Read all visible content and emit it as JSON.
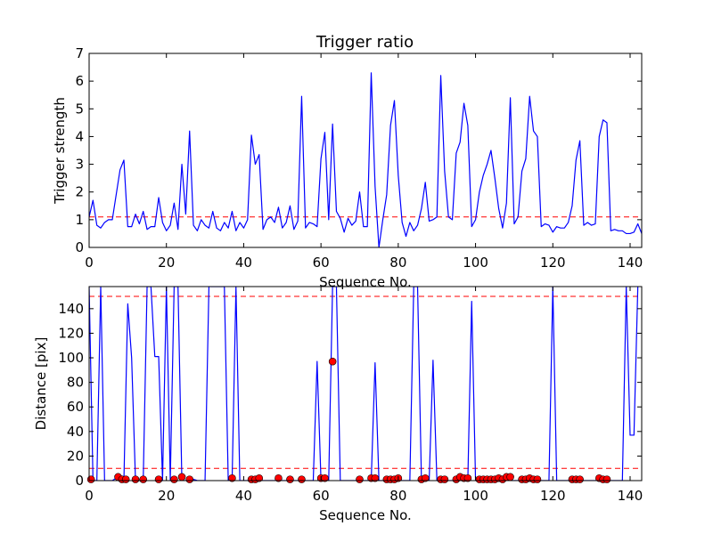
{
  "colors": {
    "series": "#0000ff",
    "threshold": "#ff0000",
    "marker_fill": "#ff0000",
    "marker_edge": "#000000"
  },
  "chart_data": [
    {
      "type": "line",
      "title": "Trigger ratio",
      "xlabel": "Sequence No.",
      "ylabel": "Trigger strength",
      "xlim": [
        0,
        143
      ],
      "ylim": [
        0,
        7
      ],
      "xticks": [
        0,
        20,
        40,
        60,
        80,
        100,
        120,
        140
      ],
      "yticks": [
        0,
        1,
        2,
        3,
        4,
        5,
        6,
        7
      ],
      "threshold": 1.1,
      "series": [
        {
          "values": [
            1.1,
            1.7,
            0.8,
            0.7,
            0.9,
            1.0,
            1.0,
            1.9,
            2.8,
            3.15,
            0.75,
            0.75,
            1.2,
            0.85,
            1.3,
            0.65,
            0.75,
            0.75,
            1.8,
            0.9,
            0.6,
            0.8,
            1.6,
            0.65,
            3.0,
            1.2,
            4.2,
            0.8,
            0.6,
            1.0,
            0.8,
            0.7,
            1.3,
            0.7,
            0.6,
            0.9,
            0.7,
            1.3,
            0.6,
            0.9,
            0.7,
            1.0,
            4.05,
            3.0,
            3.35,
            0.65,
            1.0,
            1.1,
            0.9,
            1.45,
            0.7,
            0.9,
            1.5,
            0.65,
            0.95,
            5.45,
            0.7,
            0.9,
            0.85,
            0.75,
            3.2,
            4.15,
            1.0,
            4.45,
            1.3,
            1.05,
            0.55,
            1.05,
            0.8,
            0.95,
            2.0,
            0.75,
            0.75,
            6.3,
            2.2,
            0.0,
            1.0,
            1.9,
            4.4,
            5.3,
            2.6,
            0.9,
            0.4,
            0.9,
            0.6,
            0.8,
            1.4,
            2.35,
            0.95,
            1.0,
            1.1,
            6.2,
            2.75,
            1.1,
            1.0,
            3.4,
            3.8,
            5.2,
            4.4,
            0.75,
            1.0,
            2.0,
            2.6,
            3.0,
            3.5,
            2.5,
            1.4,
            0.7,
            1.6,
            5.4,
            0.85,
            1.1,
            2.75,
            3.2,
            5.45,
            4.2,
            4.0,
            0.75,
            0.85,
            0.8,
            0.55,
            0.75,
            0.7,
            0.7,
            0.9,
            1.5,
            3.15,
            3.85,
            0.8,
            0.9,
            0.8,
            0.85,
            4.0,
            4.6,
            4.5,
            0.6,
            0.65,
            0.6,
            0.6,
            0.5,
            0.5,
            0.55,
            0.85,
            0.5
          ]
        }
      ]
    },
    {
      "type": "line",
      "title": "",
      "xlabel": "Sequence No.",
      "ylabel": "Distance [pix]",
      "xlim": [
        0,
        143
      ],
      "ylim": [
        0,
        158
      ],
      "xticks": [
        0,
        20,
        40,
        60,
        80,
        100,
        120,
        140
      ],
      "yticks": [
        0,
        20,
        40,
        60,
        80,
        100,
        120,
        140
      ],
      "thresholds": [
        150,
        10
      ],
      "series": [
        {
          "values": [
            158,
            0,
            0,
            158,
            0,
            0,
            0,
            2,
            1,
            0,
            144,
            100,
            0,
            0,
            0,
            158,
            158,
            101,
            101,
            0,
            158,
            0,
            158,
            158,
            0,
            0,
            0,
            1,
            0,
            0,
            0,
            158,
            158,
            158,
            158,
            158,
            0,
            0,
            158,
            0,
            0,
            0,
            0,
            0,
            0,
            0,
            0,
            0,
            0,
            0,
            0,
            0,
            0,
            0,
            0,
            0,
            0,
            0,
            0,
            97,
            0,
            0,
            0,
            158,
            158,
            0,
            0,
            0,
            0,
            0,
            0,
            0,
            0,
            0,
            96,
            0,
            0,
            0,
            0,
            0,
            0,
            0,
            0,
            0,
            158,
            158,
            0,
            0,
            0,
            98,
            0,
            0,
            0,
            0,
            0,
            0,
            0,
            0,
            0,
            146,
            0,
            0,
            0,
            0,
            0,
            0,
            0,
            0,
            0,
            0,
            0,
            0,
            0,
            0,
            0,
            0,
            0,
            0,
            0,
            0,
            158,
            0,
            0,
            0,
            0,
            0,
            0,
            0,
            0,
            0,
            0,
            0,
            0,
            0,
            0,
            0,
            0,
            0,
            0,
            158,
            37,
            37,
            158
          ]
        }
      ],
      "markers": [
        [
          0.5,
          1
        ],
        [
          7.5,
          3
        ],
        [
          8.5,
          1
        ],
        [
          9.5,
          1
        ],
        [
          12,
          1
        ],
        [
          14,
          1
        ],
        [
          18,
          1
        ],
        [
          22,
          1
        ],
        [
          24,
          3
        ],
        [
          26,
          1
        ],
        [
          37,
          2
        ],
        [
          42,
          1
        ],
        [
          43,
          1
        ],
        [
          44,
          2
        ],
        [
          49,
          2
        ],
        [
          52,
          1
        ],
        [
          55,
          1
        ],
        [
          60,
          2
        ],
        [
          61,
          2
        ],
        [
          63,
          97
        ],
        [
          70,
          1
        ],
        [
          73,
          2
        ],
        [
          74,
          2
        ],
        [
          77,
          1
        ],
        [
          78,
          1
        ],
        [
          79,
          1
        ],
        [
          80,
          2
        ],
        [
          86,
          1
        ],
        [
          87,
          2
        ],
        [
          91,
          1
        ],
        [
          92,
          1
        ],
        [
          95,
          1
        ],
        [
          96,
          3
        ],
        [
          97,
          2
        ],
        [
          98,
          2
        ],
        [
          101,
          1
        ],
        [
          102,
          1
        ],
        [
          103,
          1
        ],
        [
          104,
          1
        ],
        [
          105,
          1
        ],
        [
          106,
          2
        ],
        [
          107,
          1
        ],
        [
          108,
          3
        ],
        [
          109,
          3
        ],
        [
          112,
          1
        ],
        [
          113,
          1
        ],
        [
          114,
          2
        ],
        [
          115,
          1
        ],
        [
          116,
          1
        ],
        [
          125,
          1
        ],
        [
          126,
          1
        ],
        [
          127,
          1
        ],
        [
          132,
          2
        ],
        [
          133,
          1
        ],
        [
          134,
          1
        ]
      ]
    }
  ]
}
